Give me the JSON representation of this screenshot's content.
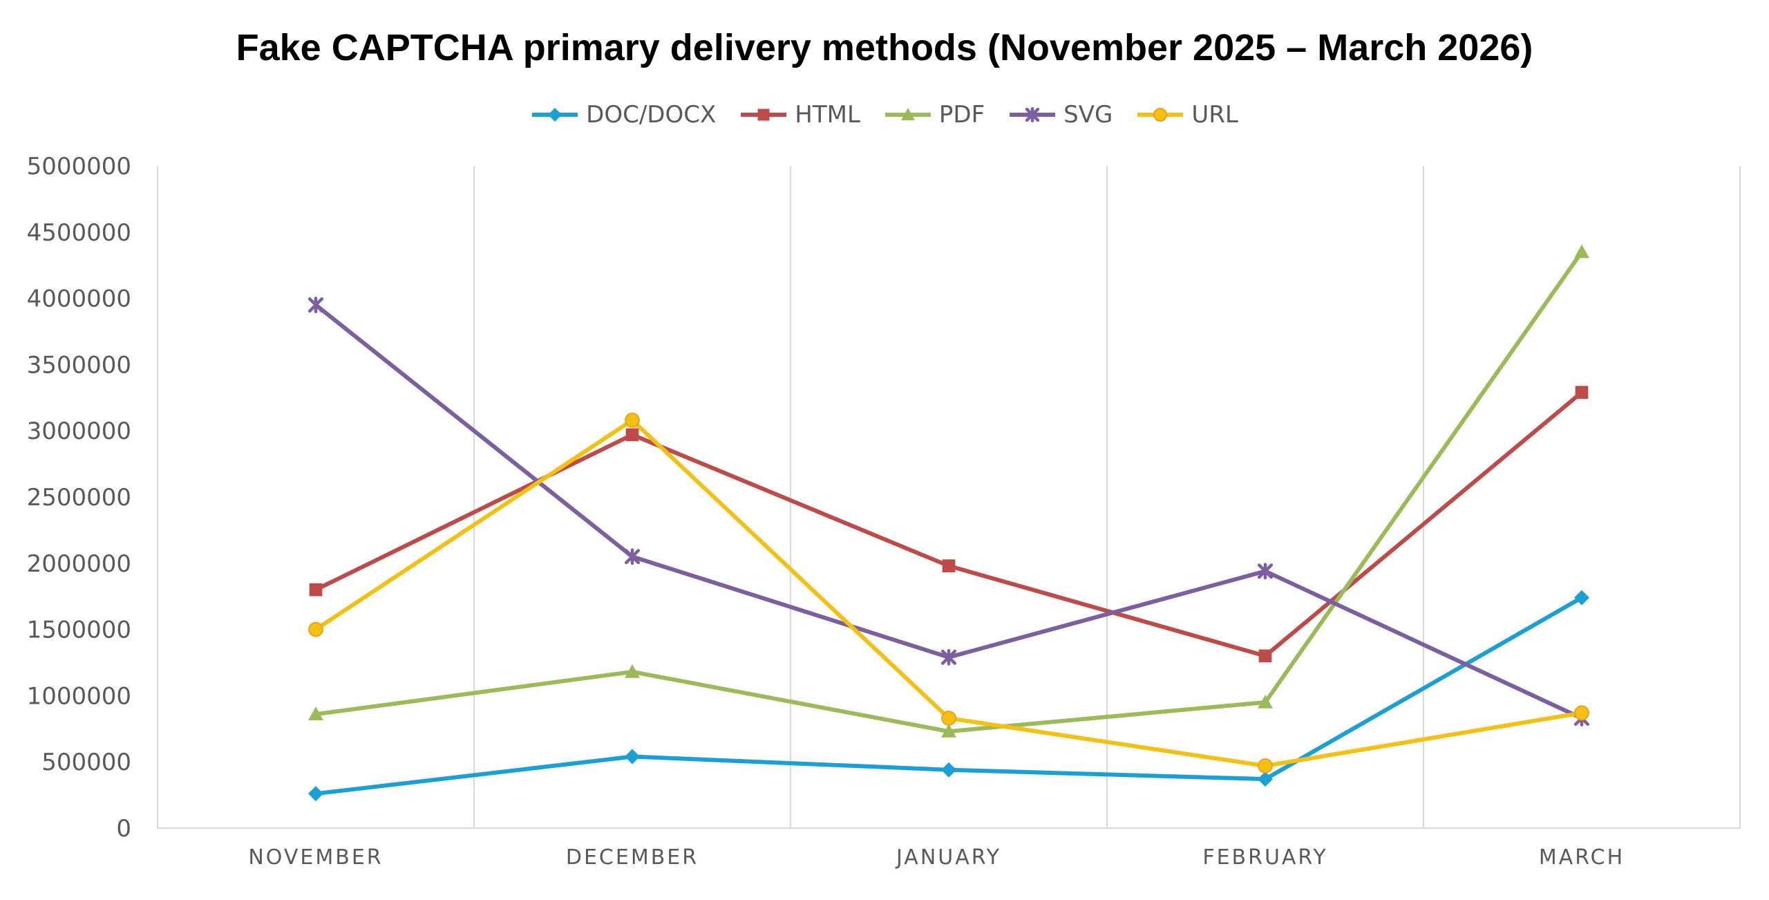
{
  "chart_data": {
    "type": "line",
    "title": "Fake CAPTCHA primary delivery methods (November 2025 – March 2026)",
    "categories": [
      "NOVEMBER",
      "DECEMBER",
      "JANUARY",
      "FEBRUARY",
      "MARCH"
    ],
    "y_ticks": [
      "5000000",
      "4500000",
      "4000000",
      "3500000",
      "3000000",
      "2500000",
      "2000000",
      "1500000",
      "1000000",
      "500000",
      "0"
    ],
    "ylim": [
      0,
      5000000
    ],
    "grid": "vertical category lines",
    "legend_position": "top",
    "series": [
      {
        "name": "DOC/DOCX",
        "color": "#1a9fd6",
        "marker": "diamond",
        "values": [
          260000,
          540000,
          440000,
          370000,
          1740000
        ]
      },
      {
        "name": "HTML",
        "color": "#bf4b49",
        "marker": "square",
        "values": [
          1800000,
          2970000,
          1980000,
          1300000,
          3290000
        ]
      },
      {
        "name": "PDF",
        "color": "#9bbb59",
        "marker": "triangle",
        "values": [
          860000,
          1180000,
          730000,
          950000,
          4350000
        ]
      },
      {
        "name": "SVG",
        "color": "#7b5fa0",
        "marker": "x-star",
        "values": [
          3950000,
          2050000,
          1290000,
          1940000,
          830000
        ]
      },
      {
        "name": "URL",
        "color": "#f5c014",
        "marker": "circle",
        "values": [
          1500000,
          3080000,
          830000,
          470000,
          870000
        ]
      }
    ]
  }
}
